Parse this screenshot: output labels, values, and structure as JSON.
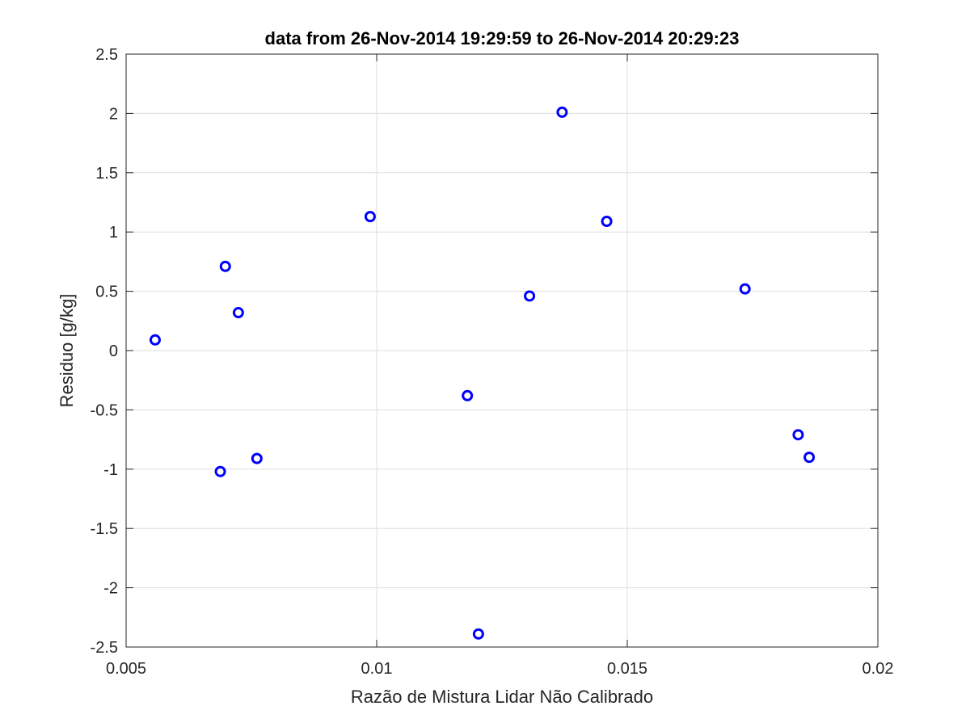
{
  "chart_data": {
    "type": "scatter",
    "title": "data from 26-Nov-2014 19:29:59 to 26-Nov-2014 20:29:23",
    "xlabel": "Razão de Mistura Lidar Não Calibrado",
    "ylabel": "Residuo [g/kg]",
    "xlim": [
      0.005,
      0.02
    ],
    "ylim": [
      -2.5,
      2.5
    ],
    "xticks": [
      0.005,
      0.01,
      0.015,
      0.02
    ],
    "xtick_labels": [
      "0.005",
      "0.01",
      "0.015",
      "0.02"
    ],
    "yticks": [
      -2.5,
      -2,
      -1.5,
      -1,
      -0.5,
      0,
      0.5,
      1,
      1.5,
      2,
      2.5
    ],
    "ytick_labels": [
      "-2.5",
      "-2",
      "-1.5",
      "-1",
      "-0.5",
      "0",
      "0.5",
      "1",
      "1.5",
      "2",
      "2.5"
    ],
    "grid": true,
    "marker": "circle",
    "color": "#0000ff",
    "series": [
      {
        "x": [
          0.00558,
          0.00698,
          0.00688,
          0.00724,
          0.00761,
          0.00987,
          0.01181,
          0.01203,
          0.01305,
          0.0137,
          0.01459,
          0.01735,
          0.01841,
          0.01863
        ],
        "y": [
          0.09,
          0.71,
          -1.02,
          0.32,
          -0.91,
          1.13,
          -0.38,
          -2.39,
          0.46,
          2.01,
          1.09,
          0.52,
          -0.71,
          -0.9
        ]
      }
    ]
  }
}
